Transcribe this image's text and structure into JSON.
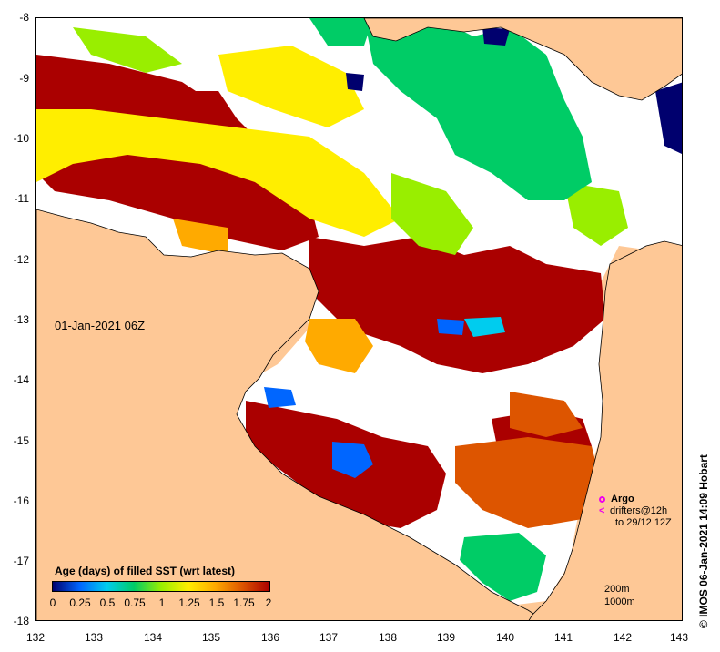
{
  "map": {
    "timestamp": "01-Jan-2021 06Z",
    "credit": "© IMOS 06-Jan-2021 14:09 Hobart",
    "lon_range": [
      132,
      143
    ],
    "lat_range": [
      -18,
      -8
    ],
    "x_ticks": [
      "132",
      "133",
      "134",
      "135",
      "136",
      "137",
      "138",
      "139",
      "140",
      "141",
      "142",
      "143"
    ],
    "y_ticks": [
      "-8",
      "-9",
      "-10",
      "-11",
      "-12",
      "-13",
      "-14",
      "-15",
      "-16",
      "-17",
      "-18"
    ],
    "colors": {
      "land": "#fec896",
      "no_data": "#ffffff"
    }
  },
  "legend": {
    "title": "Age (days) of filled SST (wrt latest)",
    "labels": [
      "0",
      "0.25",
      "0.5",
      "0.75",
      "1",
      "1.25",
      "1.5",
      "1.75",
      "2"
    ],
    "colors": [
      "#00006e",
      "#0066ff",
      "#00ccee",
      "#00cc66",
      "#99ee00",
      "#ffee00",
      "#ffaa00",
      "#dd5500",
      "#aa0000"
    ]
  },
  "argo_key": {
    "argo_label": "Argo",
    "drifter_label": "drifters@12h",
    "drifter_range": "to 29/12 12Z",
    "argo_color": "#ee00ee",
    "drifter_symbol": "<"
  },
  "depth_key": {
    "line1": "200m",
    "line2": "1000m"
  }
}
